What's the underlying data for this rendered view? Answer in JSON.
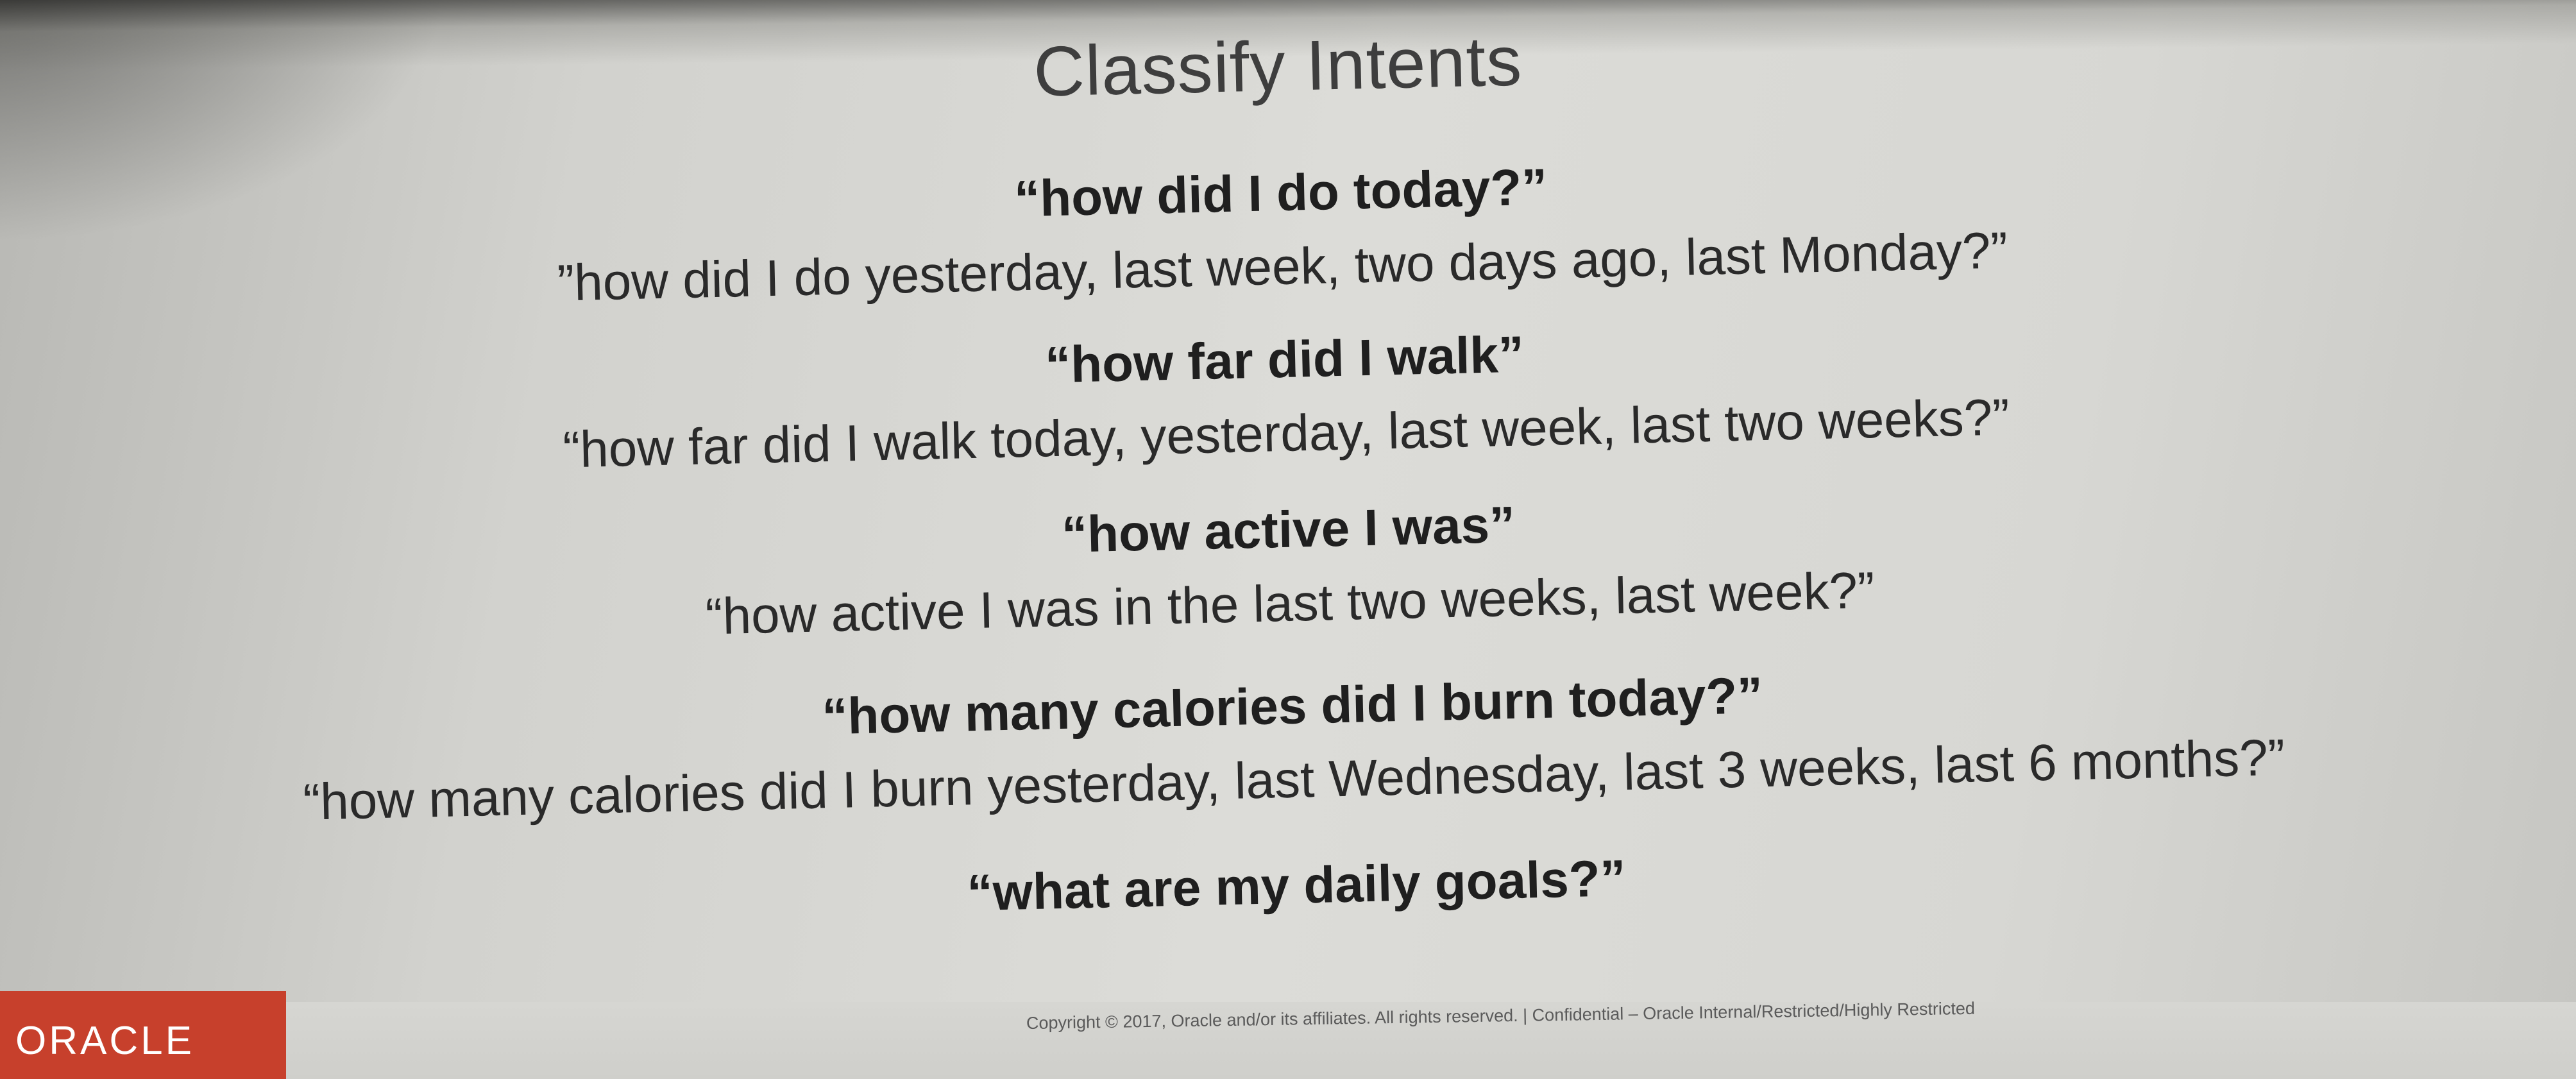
{
  "slide": {
    "title": "Classify Intents",
    "intents": [
      {
        "primary": "“how did I do today?”",
        "secondary": "”how did I do yesterday, last week, two days ago, last Monday?”"
      },
      {
        "primary": "“how far did I walk”",
        "secondary": "“how far did I walk today, yesterday, last week, last two weeks?”"
      },
      {
        "primary": "“how active I was”",
        "secondary": "“how active I was in the last two weeks, last week?”"
      },
      {
        "primary": "“how many calories did I burn today?”",
        "secondary": "“how many calories did I burn yesterday, last Wednesday, last 3 weeks, last 6 months?”"
      },
      {
        "primary": "“what are my daily goals?”"
      }
    ]
  },
  "footer": {
    "logo_text": "ORACLE",
    "copyright": "Copyright © 2017, Oracle and/or its affiliates. All rights reserved.  |  Confidential – Oracle Internal/Restricted/Highly Restricted"
  },
  "colors": {
    "brand_red": "#c7402c",
    "slide_background": "#dcdcd8",
    "text_dark": "#1f1f1f"
  }
}
